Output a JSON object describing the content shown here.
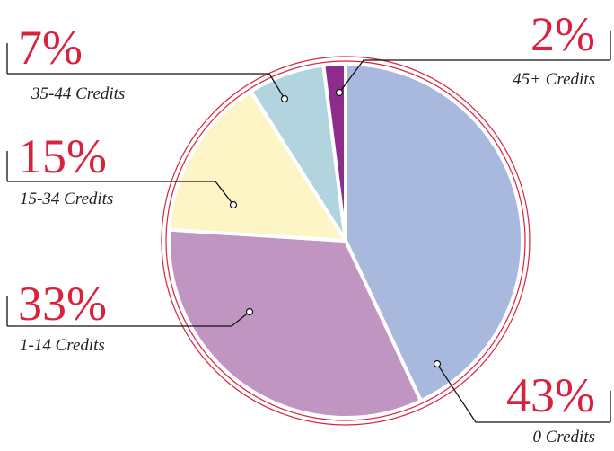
{
  "chart_data": {
    "type": "pie",
    "categories": [
      "0 Credits",
      "1-14 Credits",
      "15-34 Credits",
      "35-44 Credits",
      "45+ Credits"
    ],
    "values": [
      43,
      33,
      15,
      7,
      2
    ],
    "value_labels": [
      "43%",
      "33%",
      "15%",
      "7%",
      "2%"
    ],
    "colors": [
      "#a9b9dd",
      "#c195c1",
      "#fdf5c6",
      "#b1d4df",
      "#8e2b8c"
    ]
  }
}
